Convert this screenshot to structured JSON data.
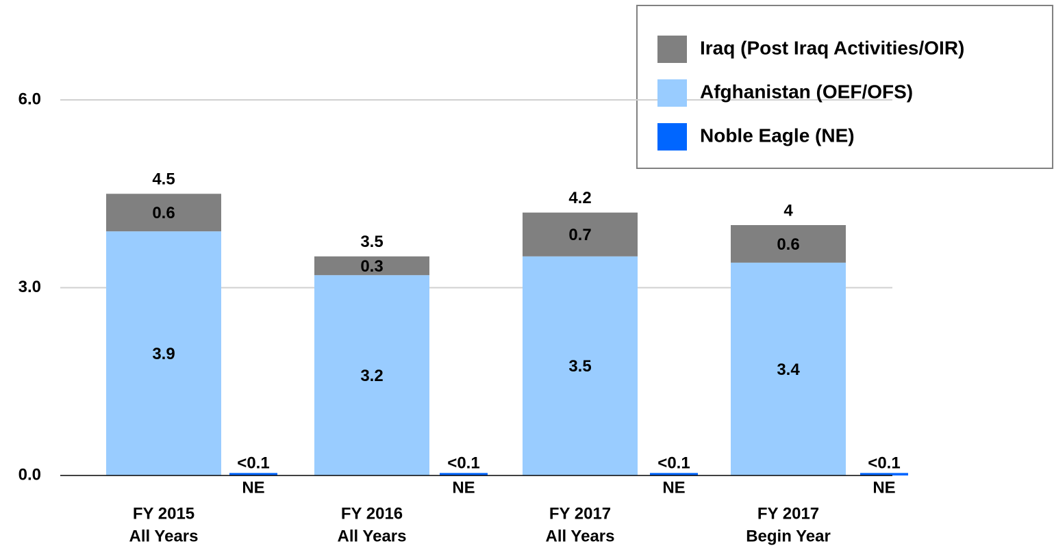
{
  "chart_data": {
    "type": "bar",
    "categories": [
      [
        "FY 2015",
        "All Years"
      ],
      [
        "FY 2016",
        "All Years"
      ],
      [
        "FY 2017",
        "All Years"
      ],
      [
        "FY 2017",
        "Begin Year"
      ]
    ],
    "series": [
      {
        "name": "Iraq (Post Iraq Activities/OIR)",
        "color": "#808080",
        "values": [
          0.6,
          0.3,
          0.7,
          0.6
        ]
      },
      {
        "name": "Afghanistan (OEF/OFS)",
        "color": "#99ccff",
        "values": [
          3.9,
          3.2,
          3.5,
          3.4
        ]
      },
      {
        "name": "Noble Eagle (NE)",
        "color": "#0066ff",
        "values": [
          0.04,
          0.04,
          0.04,
          0.04
        ],
        "value_labels": [
          "<0.1",
          "<0.1",
          "<0.1",
          "<0.1"
        ],
        "tick_label": "NE"
      }
    ],
    "totals": [
      4.5,
      3.5,
      4.2,
      4.0
    ],
    "ylim": [
      0,
      6.6
    ],
    "yticks": [
      {
        "value": 0,
        "label": "0.0"
      },
      {
        "value": 3,
        "label": "3.0"
      },
      {
        "value": 6,
        "label": "6.0"
      }
    ],
    "grid": true,
    "legend": "upper right"
  }
}
